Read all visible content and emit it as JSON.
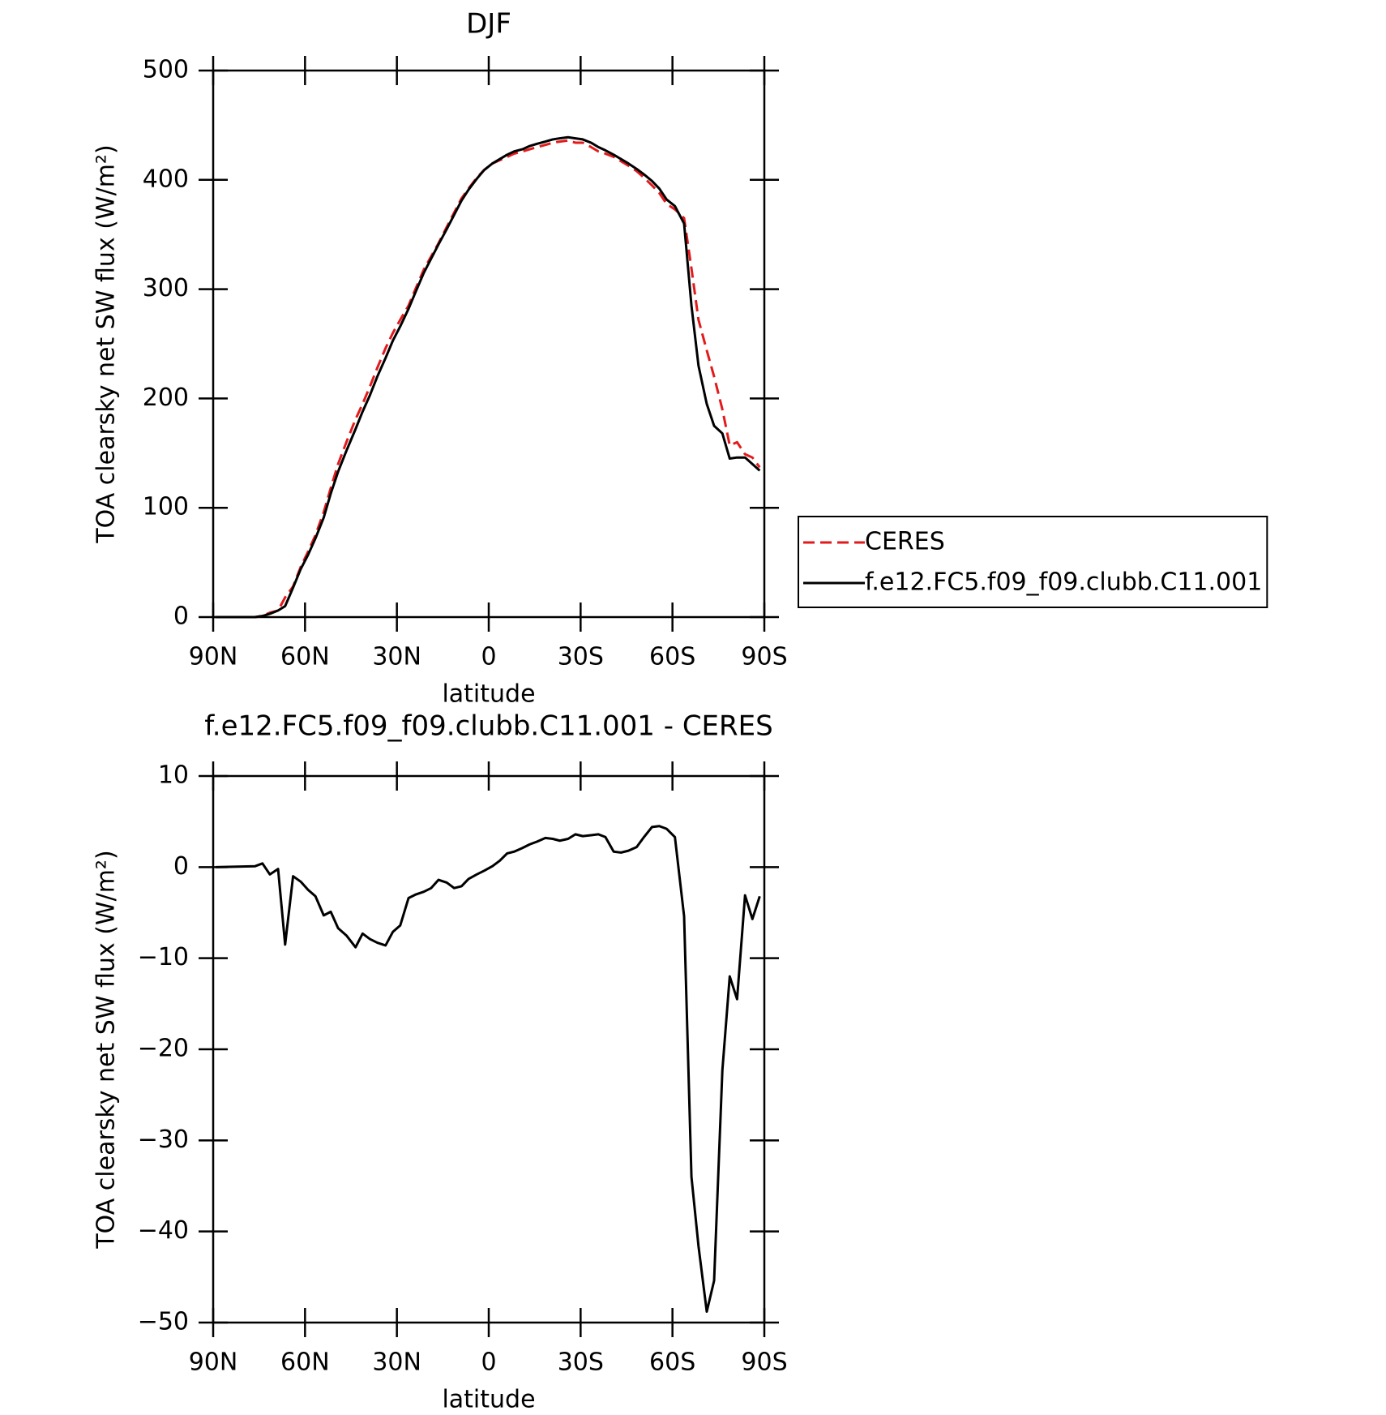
{
  "chart_data": [
    {
      "type": "line",
      "title": "DJF",
      "xlabel": "latitude",
      "ylabel": "TOA clearsky net SW flux (W/m²)",
      "x": [
        89.1,
        76.3,
        73.9,
        71.5,
        68.8,
        66.5,
        63.9,
        61.4,
        59.0,
        56.6,
        53.9,
        51.6,
        49.2,
        46.5,
        43.5,
        41.2,
        38.8,
        36.4,
        33.7,
        31.3,
        28.9,
        26.2,
        23.8,
        21.2,
        18.8,
        16.4,
        13.7,
        11.3,
        8.9,
        6.6,
        3.9,
        1.5,
        -1.2,
        -3.6,
        -6.0,
        -8.3,
        -11.0,
        -13.4,
        -15.8,
        -18.5,
        -20.9,
        -23.2,
        -25.9,
        -28.3,
        -30.7,
        -33.4,
        -35.8,
        -38.1,
        -40.8,
        -43.2,
        -45.6,
        -48.3,
        -50.7,
        -53.3,
        -55.7,
        -58.1,
        -60.8,
        -63.8,
        -66.2,
        -68.5,
        -71.2,
        -73.6,
        -76.3,
        -78.7,
        -81.1,
        -83.7,
        -86.1,
        -88.5
      ],
      "series": [
        {
          "name": "CERES",
          "color": "#e31a1c",
          "dashed": true,
          "values": [
            0,
            0,
            1,
            4,
            6,
            18,
            28,
            46,
            60,
            75,
            96,
            118,
            140,
            160,
            181,
            195,
            211,
            228,
            246,
            260,
            272,
            285,
            301,
            318,
            330,
            342,
            357,
            370,
            383,
            392,
            402,
            409,
            415,
            418,
            421,
            424,
            426,
            428,
            430,
            432,
            434,
            435,
            436,
            434,
            434,
            430,
            426,
            424,
            421,
            417,
            413,
            408,
            402,
            395,
            388,
            378,
            373,
            365,
            319,
            272,
            244,
            220,
            190,
            157,
            160,
            149,
            146,
            137
          ]
        },
        {
          "name": "f.e12.FC5.f09_f09.clubb.C11.001",
          "color": "#000000",
          "dashed": false,
          "values": [
            0,
            0,
            1,
            3,
            6,
            10,
            27,
            44,
            57,
            72,
            91,
            113,
            133,
            152,
            172,
            188,
            203,
            220,
            237,
            253,
            266,
            282,
            298,
            315,
            328,
            341,
            355,
            368,
            381,
            391,
            401,
            409,
            415,
            419,
            423,
            426,
            428,
            431,
            433,
            435,
            437,
            438,
            439,
            438,
            437,
            434,
            430,
            427,
            423,
            419,
            415,
            410,
            405,
            399,
            392,
            382,
            376,
            360,
            285,
            230,
            195,
            175,
            168,
            145,
            146,
            146,
            140,
            134
          ]
        }
      ],
      "xlim": [
        90,
        -90
      ],
      "xticks": [
        {
          "value": 90,
          "label": "90N"
        },
        {
          "value": 60,
          "label": "60N"
        },
        {
          "value": 30,
          "label": "30N"
        },
        0,
        {
          "value": -30,
          "label": "30S"
        },
        {
          "value": -60,
          "label": "60S"
        },
        {
          "value": -90,
          "label": "90S"
        }
      ],
      "ylim": [
        0,
        500
      ],
      "yticks": [
        0,
        100,
        200,
        300,
        400,
        500
      ],
      "legend": "right"
    },
    {
      "type": "line",
      "title": "f.e12.FC5.f09_f09.clubb.C11.001 - CERES",
      "xlabel": "latitude",
      "ylabel": "TOA clearsky net SW flux (W/m²)",
      "x": [
        89.1,
        76.3,
        73.9,
        71.5,
        68.8,
        66.5,
        63.9,
        61.4,
        59.0,
        56.6,
        53.9,
        51.6,
        49.2,
        46.5,
        43.5,
        41.2,
        38.8,
        36.4,
        33.7,
        31.3,
        28.9,
        26.2,
        23.8,
        21.2,
        18.8,
        16.4,
        13.7,
        11.3,
        8.9,
        6.6,
        3.9,
        1.5,
        -1.2,
        -3.6,
        -6.0,
        -8.3,
        -11.0,
        -13.4,
        -15.8,
        -18.5,
        -20.9,
        -23.2,
        -25.9,
        -28.3,
        -30.7,
        -33.4,
        -35.8,
        -38.1,
        -40.8,
        -43.2,
        -45.6,
        -48.3,
        -50.7,
        -53.3,
        -55.7,
        -58.1,
        -60.8,
        -63.8,
        -66.2,
        -68.5,
        -71.2,
        -73.6,
        -76.3,
        -78.7,
        -81.1,
        -83.7,
        -86.1,
        -88.5
      ],
      "series": [
        {
          "color": "#000000",
          "dashed": false,
          "values": [
            0,
            0.1,
            0.4,
            -0.8,
            -0.2,
            -8.5,
            -1.0,
            -1.6,
            -2.5,
            -3.2,
            -5.3,
            -4.9,
            -6.7,
            -7.5,
            -8.8,
            -7.3,
            -7.9,
            -8.3,
            -8.6,
            -7.1,
            -6.4,
            -3.4,
            -3.0,
            -2.7,
            -2.3,
            -1.4,
            -1.7,
            -2.3,
            -2.1,
            -1.3,
            -0.8,
            -0.4,
            0.1,
            0.7,
            1.5,
            1.7,
            2.1,
            2.5,
            2.8,
            3.2,
            3.1,
            2.9,
            3.1,
            3.6,
            3.4,
            3.5,
            3.6,
            3.3,
            1.7,
            1.6,
            1.8,
            2.2,
            3.3,
            4.4,
            4.5,
            4.2,
            3.3,
            -5.4,
            -34.0,
            -41.6,
            -48.8,
            -45.4,
            -22.3,
            -12.0,
            -14.5,
            -3.1,
            -5.7,
            -3.2
          ]
        }
      ],
      "xlim": [
        90,
        -90
      ],
      "xticks": [
        {
          "value": 90,
          "label": "90N"
        },
        {
          "value": 60,
          "label": "60N"
        },
        {
          "value": 30,
          "label": "30N"
        },
        0,
        {
          "value": -30,
          "label": "30S"
        },
        {
          "value": -60,
          "label": "60S"
        },
        {
          "value": -90,
          "label": "90S"
        }
      ],
      "ylim": [
        -50,
        10
      ],
      "yticks": [
        {
          "value": -50,
          "label": "−50"
        },
        {
          "value": -40,
          "label": "−40"
        },
        {
          "value": -30,
          "label": "−30"
        },
        {
          "value": -20,
          "label": "−20"
        },
        {
          "value": -10,
          "label": "−10"
        },
        0,
        10
      ]
    }
  ]
}
